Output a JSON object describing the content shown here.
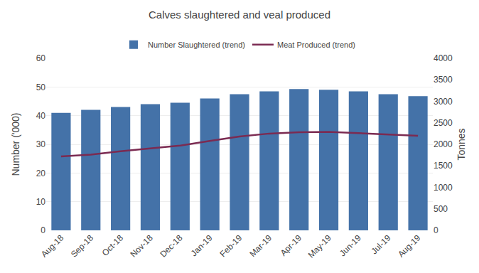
{
  "chart_data": {
    "type": "bar",
    "title": "Calves slaughtered and veal produced",
    "categories": [
      "Aug-18",
      "Sep-18",
      "Oct-18",
      "Nov-18",
      "Dec-18",
      "Jan-19",
      "Feb-19",
      "Mar-19",
      "Apr-19",
      "May-19",
      "Jun-19",
      "Jul-19",
      "Aug-19"
    ],
    "series": [
      {
        "name": "Number Slaughtered (trend)",
        "type": "bar",
        "color": "#4472A8",
        "values": [
          41.0,
          42.0,
          43.0,
          44.0,
          44.5,
          46.0,
          47.5,
          48.5,
          49.3,
          49.0,
          48.5,
          47.5,
          46.8
        ]
      },
      {
        "name": "Meat Produced (trend)",
        "type": "line",
        "color": "#7B2B52",
        "axis": "y2",
        "values": [
          1720,
          1760,
          1840,
          1900,
          1970,
          2080,
          2180,
          2250,
          2280,
          2290,
          2260,
          2220,
          2200
        ]
      }
    ],
    "ylabel": "Number ('000)",
    "y2label": "Tonnes",
    "ylim": [
      0,
      60
    ],
    "yticks": [
      0,
      10,
      20,
      30,
      40,
      50,
      60
    ],
    "y2lim": [
      0,
      4000
    ],
    "y2ticks": [
      0,
      500,
      1000,
      1500,
      2000,
      2500,
      3000,
      3500,
      4000
    ],
    "grid": true,
    "legend": "top"
  }
}
